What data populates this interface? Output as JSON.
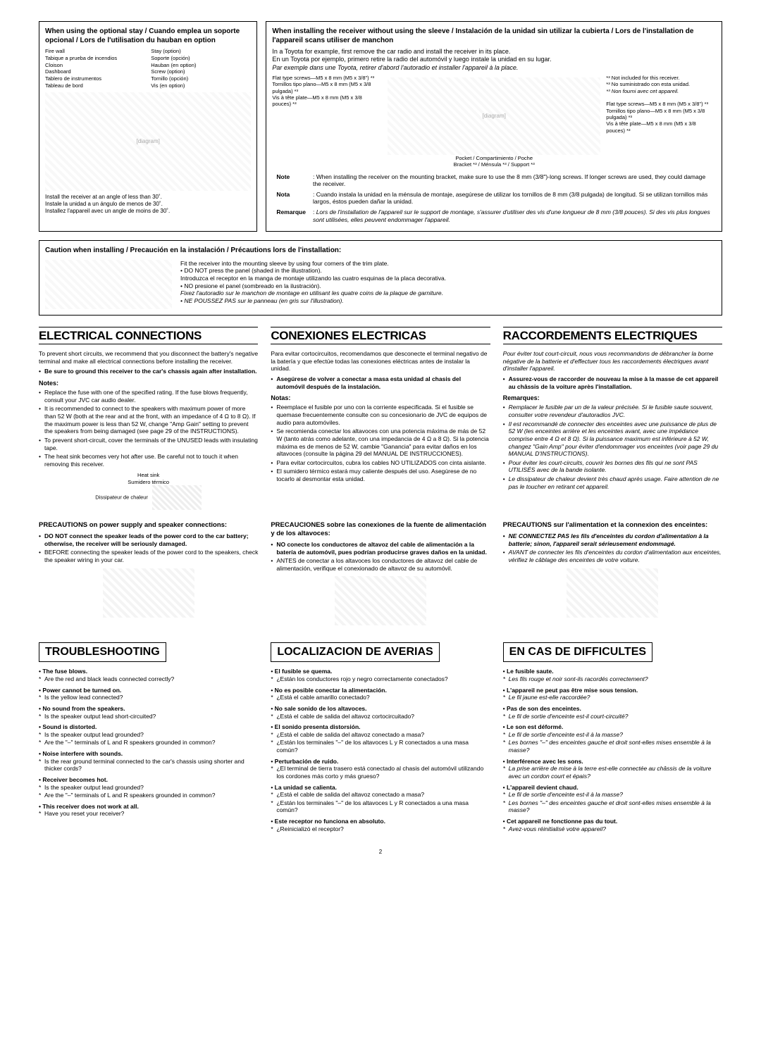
{
  "top": {
    "left": {
      "title": "When using the optional stay / Cuando emplea un soporte opcional / Lors de l'utilisation du hauban en option",
      "labels": {
        "firewall": "Fire wall\nTabique a prueba de incendios\nCloison",
        "stay": "Stay (option)\nSoporte (opción)\nHauban (en option)",
        "dashboard": "Dashboard\nTablero de instrumentos\nTableau de bord",
        "screw": "Screw (option)\nTornillo (opción)\nVis (en option)",
        "install": "Install the receiver at an angle of less than 30˚.\nInstale la unidad a un ángulo de menos de 30˚.\nInstallez l'appareil avec un angle de moins de 30˚."
      }
    },
    "right": {
      "title": "When installing the receiver without using the sleeve / Instalación de la unidad sin utilizar la cubierta / Lors de l'installation de l'appareil scans utiliser de manchon",
      "intro_en": "In a Toyota for example, first remove the car radio and install the receiver in its place.",
      "intro_es": "En un Toyota por ejemplo, primero retire la radio del automóvil y luego instale la unidad en su lugar.",
      "intro_fr": "Par exemple dans une Toyota, retirer d'abord l'autoradio et installer l'appareil à la place.",
      "labels": {
        "flat_screws": "Flat type screws—M5 x 8 mm (M5 x 3/8\") *³\nTornillos tipo plano—M5 x 8 mm (M5 x 3/8 pulgada) *³\nVis à tête plate—M5 x 8 mm (M5 x 3/8 pouces) *³",
        "bracket": "Bracket *³ / Ménsula *³ / Support *³",
        "pocket": "Pocket / Compartimiento / Poche",
        "note3_en": "*³ Not included for this receiver.",
        "note3_es": "*³ No suministrado con esta unidad.",
        "note3_fr": "*³ Non fourni avec cet appareil."
      },
      "notes": {
        "note_label": "Note",
        "note_en": "When installing the receiver on the mounting bracket, make sure to use the 8 mm (3/8\")-long screws. If longer screws are used, they could damage the receiver.",
        "nota_label": "Nota",
        "nota_es": "Cuando instala la unidad en la ménsula de montaje, asegúrese de utilizar los tornillos de 8 mm (3/8 pulgada) de longitud. Si se utilizan tornillos más largos, éstos pueden dañar la unidad.",
        "remarque_label": "Remarque",
        "remarque_fr": "Lors de l'installation de l'appareil sur le support de montage, s'assurer d'utiliser des vis d'une longueur de 8 mm (3/8 pouces). Si des vis plus longues sont utilisées, elles peuvent endommager l'appareil."
      }
    }
  },
  "caution": {
    "title": "Caution when installing / Precaución en la instalación / Précautions lors de l'installation:",
    "lines": [
      "Fit the receiver into the mounting sleeve by using four corners of the trim plate.",
      "• DO NOT press the panel (shaded in the illustration).",
      "Introduzca el receptor en la manga de montaje utilizando las cuatro esquinas de la placa decorativa.",
      "• NO presione el panel (sombreado en la ilustración).",
      "Fixez l'autoradio sur le manchon de montage en utilisant les quatre coins de la plaque de garniture.",
      "• NE POUSSEZ PAS sur le panneau (en gris sur l'illustration)."
    ]
  },
  "electrical": {
    "en": {
      "h": "ELECTRICAL CONNECTIONS",
      "intro": "To prevent short circuits, we recommend that you disconnect the battery's negative terminal and make all electrical connections before installing the receiver.",
      "bold": "Be sure to ground this receiver to the car's chassis again after installation.",
      "notes_h": "Notes:",
      "notes": [
        "Replace the fuse with one of the specified rating. If the fuse blows frequently, consult your JVC car audio dealer.",
        "It is recommended to connect to the speakers with maximum power of more than 52 W (both at the rear and at the front, with an impedance of 4 Ω to 8 Ω). If the maximum power is less than 52 W, change \"Amp Gain\" setting to prevent the speakers from being damaged (see page 29 of the INSTRUCTIONS).",
        "To prevent short-circuit, cover the terminals of the UNUSED leads with insulating tape.",
        "The heat sink becomes very hot after use. Be careful not to touch it when removing this receiver."
      ],
      "heatsink": "Heat sink\nSumidero térmico\nDissipateur de chaleur"
    },
    "es": {
      "h": "CONEXIONES ELECTRICAS",
      "intro": "Para evitar cortocircuitos, recomendamos que desconecte el terminal negativo de la batería y que efectúe todas las conexiones eléctricas antes de instalar la unidad.",
      "bold": "Asegúrese de volver a conectar a masa esta unidad al chasis del automóvil después de la instalación.",
      "notes_h": "Notas:",
      "notes": [
        "Reemplace el fusible por uno con la corriente especificada. Si el fusible se quemase frecuentemente consulte con su concesionario de JVC de equipos de audio para automóviles.",
        "Se recomienda conectar los altavoces con una potencia máxima de más de 52 W (tanto atrás como adelante, con una impedancia de 4 Ω a 8 Ω). Si la potencia máxima es de menos de 52 W, cambie \"Ganancia\" para evitar daños en los altavoces (consulte la página 29 del MANUAL DE INSTRUCCIONES).",
        "Para evitar cortocircuitos, cubra los cables NO UTILIZADOS con cinta aislante.",
        "El sumidero térmico estará muy caliente después del uso. Asegúrese de no tocarlo al desmontar esta unidad."
      ]
    },
    "fr": {
      "h": "RACCORDEMENTS ELECTRIQUES",
      "intro": "Pour éviter tout court-circuit, nous vous recommandons de débrancher la borne négative de la batterie et d'effectuer tous les raccordements électriques avant d'installer l'appareil.",
      "bold": "Assurez-vous de raccorder de nouveau la mise à la masse de cet appareil au châssis de la voiture après l'installation.",
      "notes_h": "Remarques:",
      "notes": [
        "Remplacer le fusible par un de la valeur précisée. Si le fusible saute souvent, consulter votre revendeur d'autoradios JVC.",
        "Il est recommandé de connecter des enceintes avec une puissance de plus de 52 W (les enceintes arrière et les enceintes avant, avec une impédance comprise entre 4 Ω et 8 Ω). Si la puissance maximum est inférieure à 52 W, changez \"Gain Amp\" pour éviter d'endommager vos enceintes (voir page 29 du MANUAL D'INSTRUCTIONS).",
        "Pour éviter les court-circuits, couvrir les bornes des fils qui ne sont PAS UTILISÉS avec de la bande isolante.",
        "Le dissipateur de chaleur devient très chaud après usage. Faire attention de ne pas le toucher en retirant cet appareil."
      ]
    }
  },
  "precautions": {
    "en": {
      "title": "PRECAUTIONS on power supply and speaker connections:",
      "items": [
        "DO NOT connect the speaker leads of the power cord to the car battery; otherwise, the receiver will be seriously damaged.",
        "BEFORE connecting the speaker leads of the power cord to the speakers, check the speaker wiring in your car."
      ]
    },
    "es": {
      "title": "PRECAUCIONES sobre las conexiones de la fuente de alimentación y de los altavoces:",
      "items": [
        "NO conecte los conductores de altavoz del cable de alimentación a la batería de automóvil, pues podrían producirse graves daños en la unidad.",
        "ANTES de conectar a los altavoces los conductores de altavoz del cable de alimentación, verifique el conexionado de altavoz de su automóvil."
      ]
    },
    "fr": {
      "title": "PRECAUTIONS sur l'alimentation et la connexion des enceintes:",
      "items": [
        "NE CONNECTEZ PAS les fils d'enceintes du cordon d'alimentation à la batterie; sinon, l'appareil serait sérieusement endommagé.",
        "AVANT de connecter les fils d'enceintes du cordon d'alimentation aux enceintes, vérifiez le câblage des enceintes de votre voiture."
      ]
    }
  },
  "trouble": {
    "en": {
      "h": "TROUBLESHOOTING",
      "items": [
        {
          "q": "The fuse blows.",
          "a": [
            "Are the red and black leads connected correctly?"
          ]
        },
        {
          "q": "Power cannot be turned on.",
          "a": [
            "Is the yellow lead connected?"
          ]
        },
        {
          "q": "No sound from the speakers.",
          "a": [
            "Is the speaker output lead short-circuited?"
          ]
        },
        {
          "q": "Sound is distorted.",
          "a": [
            "Is the speaker output lead grounded?",
            "Are the \"–\" terminals of L and R speakers grounded in common?"
          ]
        },
        {
          "q": "Noise interfere with sounds.",
          "a": [
            "Is the rear ground terminal connected to the car's chassis using shorter and thicker cords?"
          ]
        },
        {
          "q": "Receiver becomes hot.",
          "a": [
            "Is the speaker output lead grounded?",
            "Are the \"–\" terminals of L and R speakers grounded in common?"
          ]
        },
        {
          "q": "This receiver does not work at all.",
          "a": [
            "Have you reset your receiver?"
          ]
        }
      ]
    },
    "es": {
      "h": "LOCALIZACION DE AVERIAS",
      "items": [
        {
          "q": "El fusible se quema.",
          "a": [
            "¿Están los conductores rojo y negro correctamente conectados?"
          ]
        },
        {
          "q": "No es posible conectar la alimentación.",
          "a": [
            "¿Está el cable amarillo conectado?"
          ]
        },
        {
          "q": "No sale sonido de los altavoces.",
          "a": [
            "¿Está el cable de salida del altavoz cortocircuitado?"
          ]
        },
        {
          "q": "El sonido presenta distorsión.",
          "a": [
            "¿Está el cable de salida del altavoz conectado a masa?",
            "¿Están los terminales \"–\" de los altavoces L y R conectados a una masa común?"
          ]
        },
        {
          "q": "Perturbación de ruido.",
          "a": [
            "¿El terminal de tierra trasero está conectado al chasis del automóvil utilizando los cordones más corto y más grueso?"
          ]
        },
        {
          "q": "La unidad se calienta.",
          "a": [
            "¿Está el cable de salida del altavoz conectado a masa?",
            "¿Están los terminales \"–\" de los altavoces L y R conectados a una masa común?"
          ]
        },
        {
          "q": "Este receptor no funciona en absoluto.",
          "a": [
            "¿Reinicializó el receptor?"
          ]
        }
      ]
    },
    "fr": {
      "h": "EN CAS DE DIFFICULTES",
      "items": [
        {
          "q": "Le fusible saute.",
          "a": [
            "Les fils rouge et noir sont-ils racordés correctement?"
          ]
        },
        {
          "q": "L'appareil ne peut pas être mise sous tension.",
          "a": [
            "Le fil jaune est-elle raccordée?"
          ]
        },
        {
          "q": "Pas de son des enceintes.",
          "a": [
            "Le fil de sortie d'enceinte est-il court-circuité?"
          ]
        },
        {
          "q": "Le son est déformé.",
          "a": [
            "Le fil de sortie d'enceinte est-il à la masse?",
            "Les bornes \"–\" des enceintes gauche et droit sont-elles mises ensemble à la masse?"
          ]
        },
        {
          "q": "Interférence avec les sons.",
          "a": [
            "La prise arrière de mise à la terre est-elle connectée au châssis de la voiture avec un cordon court et épais?"
          ]
        },
        {
          "q": "L'appareil devient chaud.",
          "a": [
            "Le fil de sortie d'enceinte est-il à la masse?",
            "Les bornes \"–\" des enceintes gauche et droit sont-elles mises ensemble à la masse?"
          ]
        },
        {
          "q": "Cet appareil ne fonctionne pas du tout.",
          "a": [
            "Avez-vous réinitialisé votre appareil?"
          ]
        }
      ]
    }
  },
  "page": "2"
}
